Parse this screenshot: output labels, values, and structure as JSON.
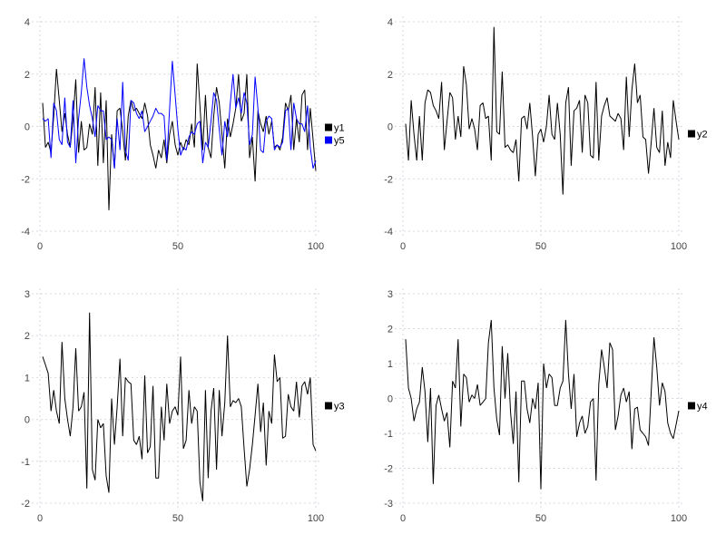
{
  "figure": {
    "background": "#ffffff",
    "grid_color": "#d9d9e0",
    "tick_label_color": "#444444",
    "layout": "2x2-grid-of-line-charts"
  },
  "chart_data": [
    {
      "type": "line",
      "title": "",
      "xlabel": "",
      "ylabel": "",
      "grid": true,
      "legend_position": "right",
      "xlim": [
        0,
        100
      ],
      "ylim": [
        -4,
        4
      ],
      "xticks": [
        0,
        50,
        100
      ],
      "yticks": [
        4,
        2,
        0,
        -2,
        -4
      ],
      "x_start": 1,
      "x_step": 1,
      "series": [
        {
          "name": "y1",
          "color": "#000000",
          "values": [
            0.9,
            -0.8,
            -0.6,
            -1.0,
            0.4,
            2.2,
            1.0,
            -0.2,
            0.5,
            -0.3,
            -0.8,
            0.3,
            1.8,
            -1.0,
            0.2,
            -0.9,
            -0.8,
            0.1,
            -0.3,
            1.5,
            -1.5,
            1.3,
            -1.4,
            1.0,
            -3.2,
            -0.3,
            -1.6,
            0.6,
            0.7,
            -0.2,
            -1.3,
            0.4,
            1.0,
            0.6,
            0.7,
            0.5,
            0.3,
            0.9,
            0.4,
            -0.7,
            -1.1,
            -1.6,
            -0.9,
            -1.2,
            -0.5,
            -1.4,
            -0.3,
            0.2,
            -0.7,
            -1.1,
            -0.6,
            -0.9,
            -0.5,
            -0.7,
            0.1,
            -0.8,
            2.4,
            0.8,
            -0.9,
            1.2,
            -0.8,
            -1.2,
            0.4,
            1.5,
            0.9,
            -0.3,
            -1.6,
            0.3,
            -0.4,
            0.1,
            0.7,
            2.0,
            0.2,
            0.5,
            2.0,
            -1.2,
            -0.4,
            -2.1,
            0.6,
            0.1,
            -0.2,
            0.4,
            -0.3,
            0.2,
            -0.8,
            -0.7,
            -0.9,
            -0.4,
            0.9,
            0.6,
            1.2,
            -0.9,
            0.3,
            -0.6,
            1.2,
            1.4,
            -0.9,
            0.7,
            -0.5,
            -1.7
          ]
        },
        {
          "name": "y5",
          "color": "#0000ff",
          "values": [
            0.3,
            0.2,
            0.3,
            -1.2,
            0.9,
            0.6,
            -0.5,
            -0.7,
            1.1,
            -0.6,
            -0.8,
            1.0,
            -1.4,
            0.3,
            1.3,
            2.6,
            1.5,
            0.8,
            0.3,
            -0.4,
            0.8,
            0.6,
            0.6,
            -0.5,
            -0.4,
            -0.5,
            -1.6,
            0.3,
            -0.9,
            1.7,
            -0.9,
            -1.3,
            1.0,
            0.9,
            0.5,
            0.3,
            0.6,
            -0.2,
            0.0,
            0.2,
            0.4,
            0.7,
            0.5,
            0.5,
            0.4,
            -1.3,
            0.7,
            2.5,
            1.2,
            -0.1,
            -1.1,
            -0.8,
            -0.9,
            -0.4,
            -0.2,
            -0.3,
            0.1,
            0.2,
            -1.4,
            -0.6,
            -0.8,
            0.2,
            1.3,
            1.0,
            -0.1,
            -1.1,
            0.2,
            -0.4,
            0.9,
            2.0,
            0.7,
            1.1,
            0.5,
            1.3,
            0.9,
            -0.7,
            -0.3,
            1.9,
            0.7,
            -0.9,
            -1.0,
            0.2,
            0.4,
            0.3,
            -0.9,
            -0.7,
            -0.8,
            -0.6,
            0.6,
            0.7,
            -0.9,
            0.9,
            0.3,
            0.1,
            0.1,
            -0.2,
            0.8,
            -0.8,
            -1.6,
            -1.3
          ]
        }
      ]
    },
    {
      "type": "line",
      "title": "",
      "xlabel": "",
      "ylabel": "",
      "grid": true,
      "legend_position": "right",
      "xlim": [
        0,
        100
      ],
      "ylim": [
        -4,
        4
      ],
      "xticks": [
        0,
        50,
        100
      ],
      "yticks": [
        4,
        2,
        0,
        -2,
        -4
      ],
      "x_start": 1,
      "x_step": 1,
      "series": [
        {
          "name": "y2",
          "color": "#000000",
          "values": [
            0.1,
            -1.3,
            1.0,
            -0.3,
            -1.3,
            0.4,
            -1.3,
            0.9,
            1.4,
            1.3,
            0.8,
            0.6,
            0.3,
            1.7,
            -0.9,
            0.2,
            1.3,
            1.1,
            -0.5,
            0.4,
            -0.4,
            2.3,
            1.6,
            -0.1,
            0.3,
            -0.1,
            -0.9,
            0.8,
            0.9,
            0.3,
            0.4,
            -1.3,
            3.8,
            -0.2,
            -0.3,
            2.1,
            -0.8,
            -0.7,
            -0.9,
            -1.0,
            -0.5,
            -2.1,
            0.3,
            0.4,
            -0.1,
            0.9,
            -0.4,
            -1.9,
            -0.3,
            -0.1,
            -0.6,
            0.0,
            1.2,
            -0.3,
            -0.5,
            0.9,
            -0.3,
            -2.6,
            0.9,
            1.5,
            -1.5,
            0.6,
            0.7,
            1.0,
            -1.0,
            1.2,
            0.9,
            -1.1,
            -1.2,
            1.7,
            -1.3,
            0.4,
            0.8,
            1.1,
            0.4,
            0.3,
            0.2,
            0.5,
            0.3,
            -0.9,
            1.9,
            -0.4,
            1.4,
            2.4,
            0.9,
            1.2,
            -0.4,
            -0.5,
            -1.8,
            -0.6,
            0.7,
            -0.8,
            -1.0,
            0.6,
            -1.5,
            -0.6,
            -1.2,
            1.0,
            0.2,
            -0.5
          ]
        }
      ]
    },
    {
      "type": "line",
      "title": "",
      "xlabel": "",
      "ylabel": "",
      "grid": true,
      "legend_position": "right",
      "xlim": [
        0,
        100
      ],
      "ylim": [
        -2,
        3
      ],
      "xticks": [
        0,
        50,
        100
      ],
      "yticks": [
        3,
        2,
        1,
        0,
        -1,
        -2
      ],
      "x_start": 1,
      "x_step": 1,
      "series": [
        {
          "name": "y3",
          "color": "#000000",
          "values": [
            1.5,
            1.3,
            1.1,
            0.2,
            0.7,
            0.2,
            -0.1,
            1.85,
            0.5,
            0.0,
            -0.4,
            0.3,
            1.7,
            0.2,
            0.3,
            0.65,
            -1.65,
            2.55,
            -1.2,
            -1.45,
            0.0,
            -0.2,
            -0.1,
            -1.35,
            -1.75,
            0.5,
            -0.6,
            0.3,
            1.45,
            -0.4,
            1.0,
            0.9,
            0.85,
            -0.5,
            -0.6,
            -0.4,
            -0.95,
            1.05,
            -0.8,
            -0.65,
            0.8,
            -1.4,
            -1.4,
            0.3,
            -0.5,
            0.85,
            -0.1,
            0.2,
            0.3,
            0.1,
            1.5,
            -0.7,
            -0.5,
            0.7,
            -0.1,
            0.3,
            0.2,
            -1.5,
            -1.95,
            0.7,
            -1.4,
            0.2,
            0.75,
            -1.2,
            0.7,
            -0.4,
            0.4,
            2.0,
            0.3,
            0.45,
            0.4,
            0.5,
            0.3,
            -0.7,
            -1.6,
            -1.2,
            -0.6,
            0.1,
            0.85,
            -0.3,
            0.4,
            -1.1,
            0.2,
            -0.1,
            1.55,
            0.9,
            1.0,
            -0.45,
            -0.4,
            0.6,
            0.3,
            0.2,
            0.9,
            0.05,
            0.8,
            0.9,
            0.6,
            1.0,
            -0.6,
            -0.75
          ]
        }
      ]
    },
    {
      "type": "line",
      "title": "",
      "xlabel": "",
      "ylabel": "",
      "grid": true,
      "legend_position": "right",
      "xlim": [
        0,
        100
      ],
      "ylim": [
        -3,
        3
      ],
      "xticks": [
        0,
        50,
        100
      ],
      "yticks": [
        3,
        2,
        1,
        0,
        -1,
        -2,
        -3
      ],
      "x_start": 1,
      "x_step": 1,
      "series": [
        {
          "name": "y4",
          "color": "#000000",
          "values": [
            1.7,
            0.3,
            0.0,
            -0.65,
            -0.3,
            -0.1,
            0.9,
            0.2,
            -1.25,
            0.3,
            -2.45,
            -0.2,
            0.1,
            -0.3,
            -0.65,
            -0.4,
            -1.4,
            0.5,
            0.3,
            1.7,
            -0.8,
            0.7,
            0.6,
            -0.1,
            0.1,
            0.0,
            0.4,
            -0.2,
            -0.1,
            0.0,
            1.6,
            2.25,
            0.3,
            -0.6,
            -1.05,
            1.5,
            0.0,
            1.3,
            -0.4,
            -1.3,
            0.2,
            -2.4,
            0.5,
            0.5,
            -0.3,
            -0.7,
            0.0,
            -0.3,
            0.45,
            -2.6,
            1.0,
            0.3,
            0.7,
            0.6,
            -0.2,
            -0.2,
            0.3,
            0.5,
            2.25,
            0.7,
            -0.3,
            0.7,
            -1.1,
            -0.7,
            -0.5,
            -1.0,
            -0.8,
            -0.1,
            0.0,
            -2.35,
            0.4,
            1.4,
            0.9,
            0.3,
            1.6,
            1.4,
            -0.9,
            -0.5,
            0.1,
            0.3,
            -0.1,
            0.2,
            -1.45,
            -0.3,
            -0.25,
            -0.9,
            -1.0,
            -1.1,
            -1.35,
            0.2,
            1.75,
            0.9,
            -0.2,
            0.45,
            0.2,
            -0.7,
            -1.0,
            -1.15,
            -0.75,
            -0.35
          ]
        }
      ]
    }
  ]
}
